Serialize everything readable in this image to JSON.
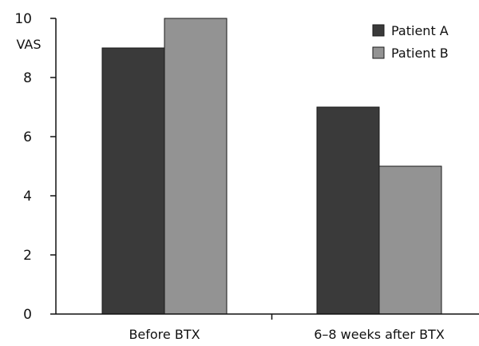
{
  "chart_data": {
    "type": "bar",
    "title": "",
    "xlabel": "",
    "ylabel": "VAS",
    "ylim": [
      0,
      10
    ],
    "yticks": [
      0,
      2,
      4,
      6,
      8,
      10
    ],
    "categories": [
      "Before BTX",
      "6–8 weeks after BTX"
    ],
    "series": [
      {
        "name": "Patient A",
        "values": [
          9,
          7
        ],
        "color": "#3a3a3a"
      },
      {
        "name": "Patient B",
        "values": [
          10,
          5
        ],
        "color": "#939393"
      }
    ],
    "grid": false,
    "legend": "top-right"
  }
}
